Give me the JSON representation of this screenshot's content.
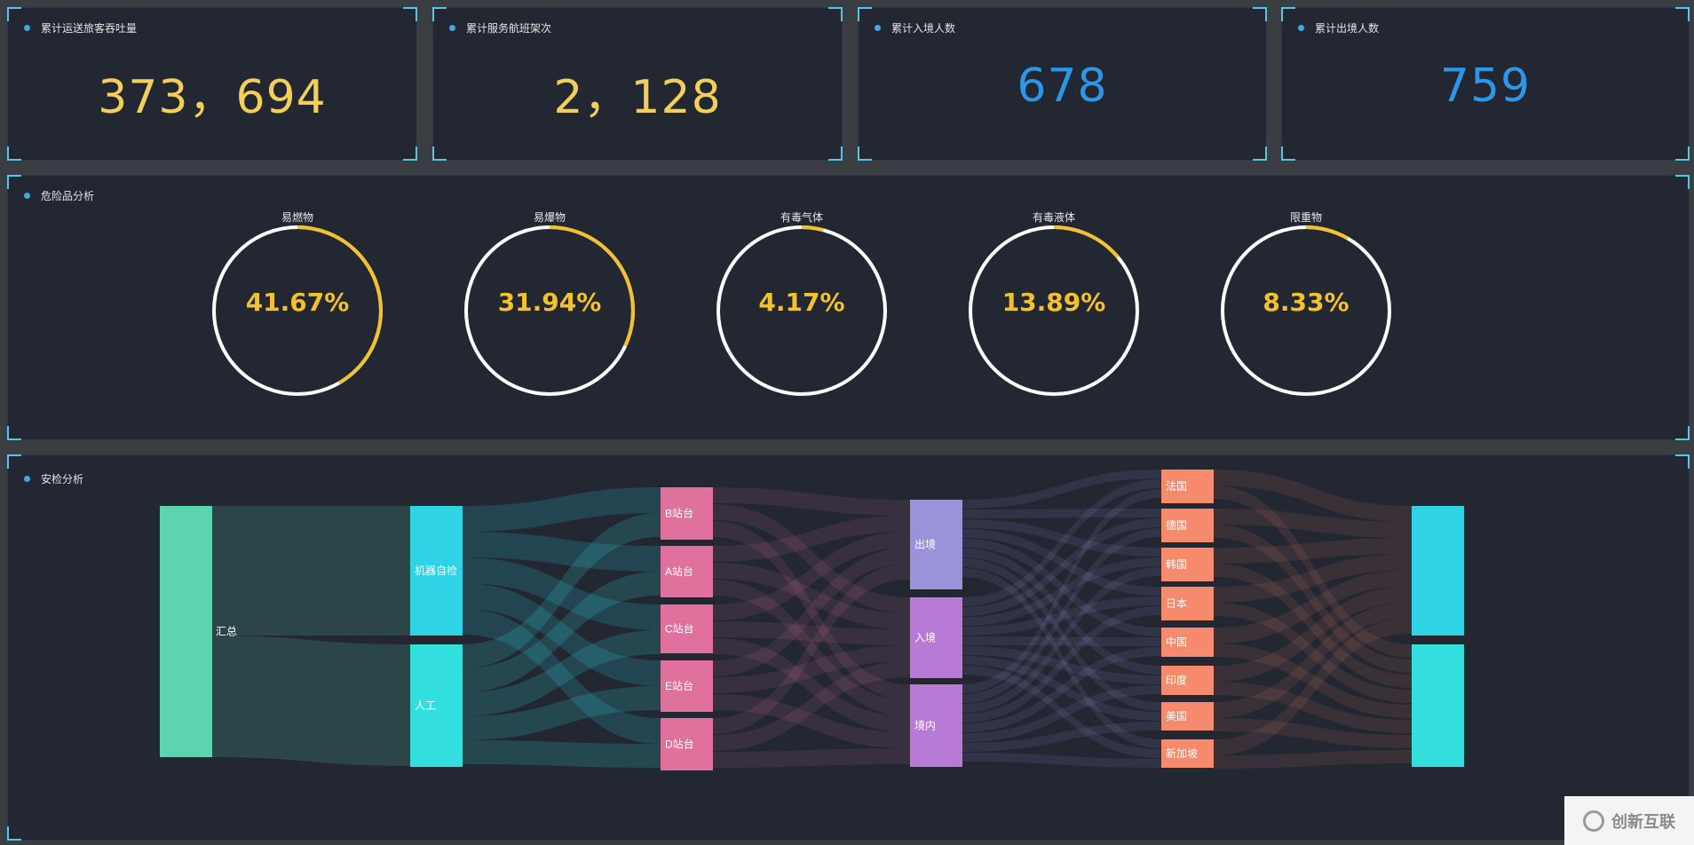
{
  "stats": [
    {
      "title": "累计运送旅客吞吐量",
      "value": "373，694",
      "color": "#f2cf5b"
    },
    {
      "title": "累计服务航班架次",
      "value": "2，128",
      "color": "#f2cf5b"
    },
    {
      "title": "累计入境人数",
      "value": "678",
      "color": "#2d96e8"
    },
    {
      "title": "累计出境人数",
      "value": "759",
      "color": "#2d96e8"
    }
  ],
  "danger": {
    "title": "危险品分析",
    "items": [
      {
        "label": "易燃物",
        "percent": "41.67%",
        "value": 41.67
      },
      {
        "label": "易爆物",
        "percent": "31.94%",
        "value": 31.94
      },
      {
        "label": "有毒气体",
        "percent": "4.17%",
        "value": 4.17
      },
      {
        "label": "有毒液体",
        "percent": "13.89%",
        "value": 13.89
      },
      {
        "label": "限重物",
        "percent": "8.33%",
        "value": 8.33
      }
    ],
    "colors": {
      "ring": "#ffffff",
      "arc": "#f2c22e"
    }
  },
  "security": {
    "title": "安检分析",
    "nodes": [
      {
        "id": "total",
        "label": "汇总",
        "color": "#5dd3b0"
      },
      {
        "id": "machine",
        "label": "机器自检",
        "color": "#2fd3e6"
      },
      {
        "id": "manual",
        "label": "人工",
        "color": "#33dede"
      },
      {
        "id": "B",
        "label": "B站台",
        "color": "#e0709c"
      },
      {
        "id": "A",
        "label": "A站台",
        "color": "#e0709c"
      },
      {
        "id": "C",
        "label": "C站台",
        "color": "#e0709c"
      },
      {
        "id": "E",
        "label": "E站台",
        "color": "#e0709c"
      },
      {
        "id": "D",
        "label": "D站台",
        "color": "#e0709c"
      },
      {
        "id": "out",
        "label": "出境",
        "color": "#9b93da"
      },
      {
        "id": "in",
        "label": "入境",
        "color": "#b77ad6"
      },
      {
        "id": "domestic",
        "label": "境内",
        "color": "#b77ad6"
      },
      {
        "id": "FR",
        "label": "法国",
        "color": "#f58a6c"
      },
      {
        "id": "DE",
        "label": "德国",
        "color": "#f58a6c"
      },
      {
        "id": "KR",
        "label": "韩国",
        "color": "#f58a6c"
      },
      {
        "id": "JP",
        "label": "日本",
        "color": "#f58a6c"
      },
      {
        "id": "CN",
        "label": "中国",
        "color": "#f58a6c"
      },
      {
        "id": "IN",
        "label": "印度",
        "color": "#f58a6c"
      },
      {
        "id": "US",
        "label": "美国",
        "color": "#f58a6c"
      },
      {
        "id": "SG",
        "label": "新加坡",
        "color": "#f58a6c"
      },
      {
        "id": "end1",
        "label": "",
        "color": "#2fd3e6"
      },
      {
        "id": "end2",
        "label": "",
        "color": "#33dede"
      }
    ]
  },
  "watermark": {
    "text": "创新互联"
  }
}
